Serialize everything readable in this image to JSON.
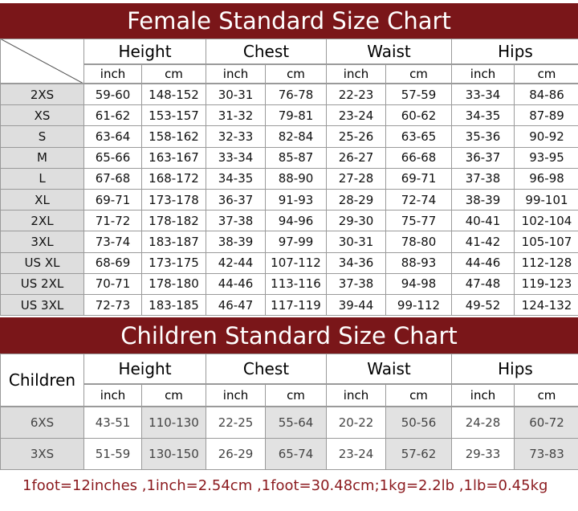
{
  "female": {
    "title": "Female Standard Size Chart",
    "columns": [
      "Height",
      "Chest",
      "Waist",
      "Hips"
    ],
    "units": [
      "inch",
      "cm"
    ],
    "rows": [
      [
        "2XS",
        "59-60",
        "148-152",
        "30-31",
        "76-78",
        "22-23",
        "57-59",
        "33-34",
        "84-86"
      ],
      [
        "XS",
        "61-62",
        "153-157",
        "31-32",
        "79-81",
        "23-24",
        "60-62",
        "34-35",
        "87-89"
      ],
      [
        "S",
        "63-64",
        "158-162",
        "32-33",
        "82-84",
        "25-26",
        "63-65",
        "35-36",
        "90-92"
      ],
      [
        "M",
        "65-66",
        "163-167",
        "33-34",
        "85-87",
        "26-27",
        "66-68",
        "36-37",
        "93-95"
      ],
      [
        "L",
        "67-68",
        "168-172",
        "34-35",
        "88-90",
        "27-28",
        "69-71",
        "37-38",
        "96-98"
      ],
      [
        "XL",
        "69-71",
        "173-178",
        "36-37",
        "91-93",
        "28-29",
        "72-74",
        "38-39",
        "99-101"
      ],
      [
        "2XL",
        "71-72",
        "178-182",
        "37-38",
        "94-96",
        "29-30",
        "75-77",
        "40-41",
        "102-104"
      ],
      [
        "3XL",
        "73-74",
        "183-187",
        "38-39",
        "97-99",
        "30-31",
        "78-80",
        "41-42",
        "105-107"
      ],
      [
        "US XL",
        "68-69",
        "173-175",
        "42-44",
        "107-112",
        "34-36",
        "88-93",
        "44-46",
        "112-128"
      ],
      [
        "US 2XL",
        "70-71",
        "178-180",
        "44-46",
        "113-116",
        "37-38",
        "94-98",
        "47-48",
        "119-123"
      ],
      [
        "US 3XL",
        "72-73",
        "183-185",
        "46-47",
        "117-119",
        "39-44",
        "99-112",
        "49-52",
        "124-132"
      ]
    ]
  },
  "children": {
    "title": "Children Standard Size Chart",
    "corner": "Children",
    "columns": [
      "Height",
      "Chest",
      "Waist",
      "Hips"
    ],
    "units": [
      "inch",
      "cm"
    ],
    "rows": [
      [
        "6XS",
        "43-51",
        "110-130",
        "22-25",
        "55-64",
        "20-22",
        "50-56",
        "24-28",
        "60-72"
      ],
      [
        "3XS",
        "51-59",
        "130-150",
        "26-29",
        "65-74",
        "23-24",
        "57-62",
        "29-33",
        "73-83"
      ]
    ]
  },
  "footer": "1foot=12inches ,1inch=2.54cm ,1foot=30.48cm;1kg=2.2lb ,1lb=0.45kg"
}
